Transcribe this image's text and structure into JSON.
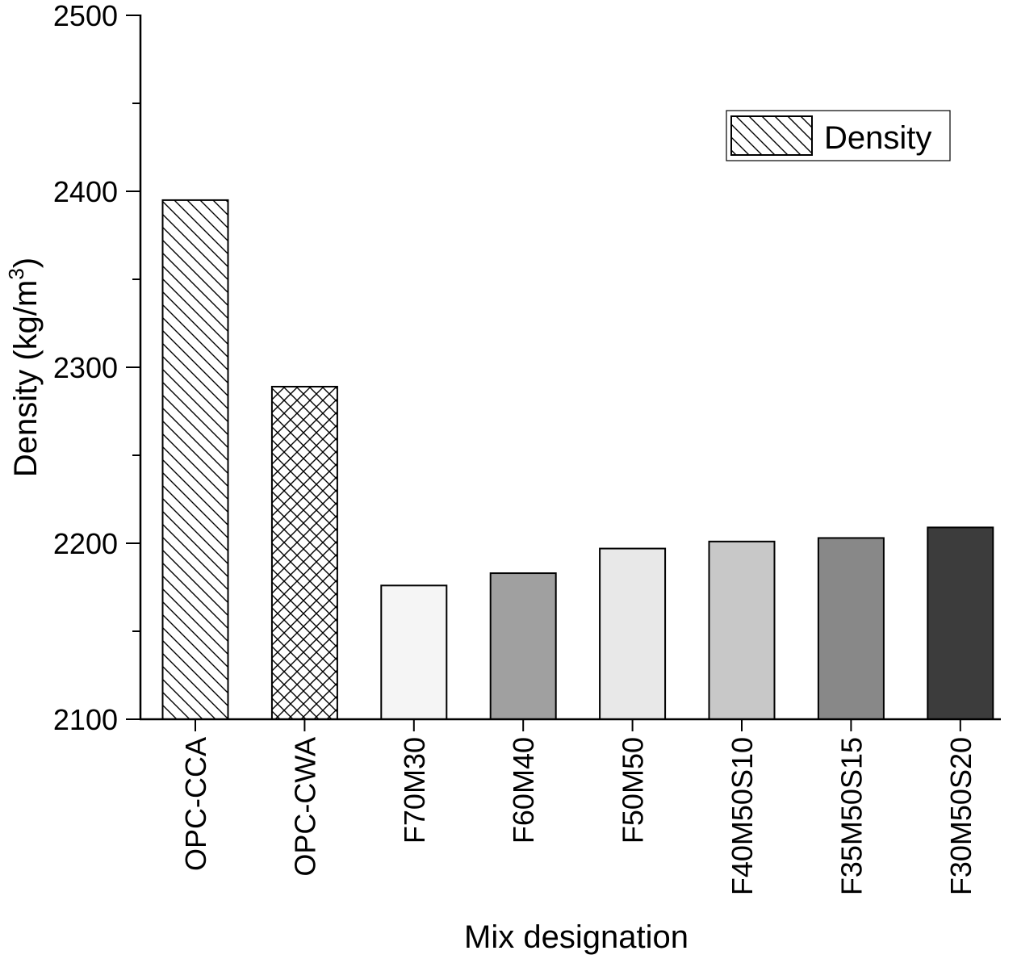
{
  "chart_data": {
    "type": "bar",
    "categories": [
      "OPC-CCA",
      "OPC-CWA",
      "F70M30",
      "F60M40",
      "F50M50",
      "F40M50S10",
      "F35M50S15",
      "F30M50S20"
    ],
    "series": [
      {
        "name": "Density",
        "values": [
          2395,
          2289,
          2176,
          2183,
          2197,
          2201,
          2203,
          2209
        ]
      }
    ],
    "bar_fills": [
      "hatch-diagonal",
      "hatch-cross",
      "#f5f5f5",
      "#a0a0a0",
      "#e8e8e8",
      "#c8c8c8",
      "#888888",
      "#3c3c3c"
    ],
    "xlabel": "Mix designation",
    "ylabel": "Density (kg/m",
    "ylabel_superscript": "3",
    "ylabel_close": ")",
    "ylim": [
      2100,
      2500
    ],
    "yticks": [
      "2100",
      "2200",
      "2300",
      "2400",
      "2500"
    ],
    "legend_position": "top-right",
    "grid": false
  }
}
